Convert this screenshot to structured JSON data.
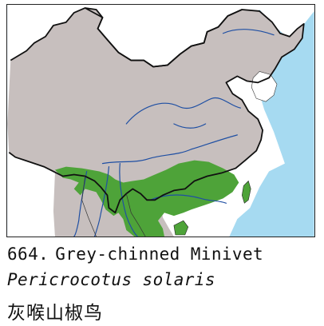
{
  "map": {
    "colors": {
      "sea": "#a6daf1",
      "land_outside": "#ffffff",
      "country_land": "#c7bfbe",
      "range": "#4ea339",
      "river": "#1f4fa3",
      "border": "#111111"
    },
    "icons": {
      "range": "distribution-area-shape"
    }
  },
  "caption": {
    "number": "664.",
    "english_name": "Grey-chinned Minivet",
    "scientific_name": "Pericrocotus solaris",
    "chinese_name": "灰喉山椒鸟"
  }
}
